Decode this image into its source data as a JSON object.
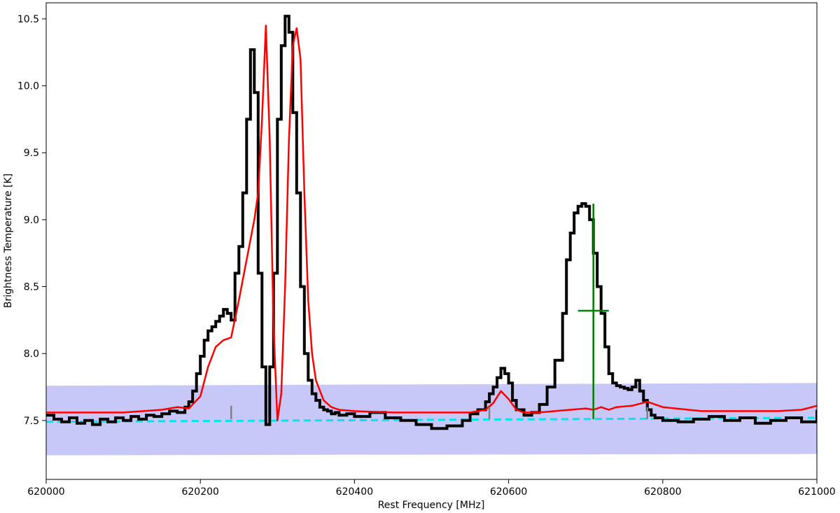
{
  "chart_data": {
    "type": "line",
    "title": "",
    "xlabel": "Rest Frequency [MHz]",
    "ylabel": "Brightness Temperature [K]",
    "xlim": [
      620000,
      621000
    ],
    "ylim": [
      7.06,
      10.62
    ],
    "grid": false,
    "x_ticks": [
      620000,
      620200,
      620400,
      620600,
      620800,
      621000
    ],
    "y_ticks": [
      7.5,
      8.0,
      8.5,
      9.0,
      9.5,
      10.0,
      10.5
    ],
    "x_tick_labels": [
      "620000",
      "620200",
      "620400",
      "620600",
      "620800",
      "621000"
    ],
    "y_tick_labels": [
      "7.5",
      "8.0",
      "8.5",
      "9.0",
      "9.5",
      "10.0",
      "10.5"
    ],
    "colors": {
      "observed": "#000000",
      "model": "#ff0000",
      "baseline": "#00e5ee",
      "band": "#c8c8f8",
      "marker": "#808080",
      "errorbar": "#008000"
    },
    "series": [
      {
        "role": "observed",
        "style": "step",
        "x": [
          620000,
          620010,
          620020,
          620030,
          620040,
          620050,
          620060,
          620070,
          620080,
          620090,
          620100,
          620110,
          620120,
          620130,
          620140,
          620150,
          620160,
          620170,
          620180,
          620185,
          620190,
          620195,
          620200,
          620205,
          620210,
          620215,
          620220,
          620225,
          620230,
          620235,
          620240,
          620245,
          620250,
          620255,
          620260,
          620265,
          620270,
          620275,
          620280,
          620285,
          620290,
          620295,
          620300,
          620305,
          620310,
          620315,
          620320,
          620325,
          620330,
          620335,
          620340,
          620345,
          620350,
          620355,
          620360,
          620365,
          620370,
          620375,
          620380,
          620390,
          620400,
          620420,
          620440,
          620460,
          620480,
          620500,
          620520,
          620540,
          620550,
          620560,
          620570,
          620575,
          620580,
          620585,
          620590,
          620595,
          620600,
          620605,
          620610,
          620620,
          620630,
          620640,
          620650,
          620660,
          620670,
          620675,
          620680,
          620685,
          620690,
          620695,
          620700,
          620705,
          620710,
          620715,
          620720,
          620725,
          620730,
          620735,
          620740,
          620745,
          620750,
          620755,
          620760,
          620765,
          620770,
          620775,
          620780,
          620785,
          620790,
          620800,
          620820,
          620840,
          620860,
          620880,
          620900,
          620920,
          620940,
          620960,
          620980,
          621000
        ],
        "y": [
          7.54,
          7.51,
          7.49,
          7.52,
          7.48,
          7.5,
          7.47,
          7.51,
          7.49,
          7.52,
          7.5,
          7.53,
          7.51,
          7.54,
          7.53,
          7.55,
          7.57,
          7.56,
          7.6,
          7.64,
          7.72,
          7.85,
          7.98,
          8.1,
          8.17,
          8.2,
          8.24,
          8.28,
          8.33,
          8.3,
          8.25,
          8.6,
          8.8,
          9.2,
          9.75,
          10.27,
          9.95,
          8.6,
          7.9,
          7.47,
          7.9,
          8.6,
          9.75,
          10.3,
          10.52,
          10.4,
          9.8,
          9.2,
          8.5,
          8.0,
          7.8,
          7.7,
          7.65,
          7.6,
          7.58,
          7.57,
          7.55,
          7.56,
          7.54,
          7.55,
          7.53,
          7.56,
          7.52,
          7.5,
          7.47,
          7.44,
          7.46,
          7.5,
          7.55,
          7.58,
          7.64,
          7.7,
          7.75,
          7.82,
          7.89,
          7.85,
          7.78,
          7.65,
          7.58,
          7.54,
          7.56,
          7.62,
          7.75,
          7.95,
          8.3,
          8.7,
          8.9,
          9.05,
          9.1,
          9.12,
          9.1,
          9.0,
          8.75,
          8.5,
          8.3,
          8.05,
          7.85,
          7.78,
          7.76,
          7.75,
          7.74,
          7.73,
          7.75,
          7.8,
          7.72,
          7.65,
          7.58,
          7.54,
          7.52,
          7.5,
          7.49,
          7.51,
          7.53,
          7.5,
          7.52,
          7.48,
          7.5,
          7.52,
          7.49,
          7.58
        ]
      },
      {
        "role": "model",
        "style": "line",
        "x": [
          620000,
          620050,
          620100,
          620150,
          620170,
          620185,
          620200,
          620210,
          620220,
          620230,
          620240,
          620250,
          620260,
          620270,
          620275,
          620280,
          620285,
          620290,
          620295,
          620300,
          620305,
          620310,
          620315,
          620320,
          620325,
          620330,
          620335,
          620340,
          620345,
          620350,
          620360,
          620370,
          620380,
          620400,
          620450,
          620500,
          620550,
          620570,
          620580,
          620590,
          620600,
          620610,
          620620,
          620640,
          620660,
          620680,
          620700,
          620710,
          620720,
          620730,
          620740,
          620760,
          620780,
          620800,
          620850,
          620900,
          620950,
          620980,
          621000
        ],
        "y": [
          7.56,
          7.56,
          7.56,
          7.58,
          7.6,
          7.59,
          7.68,
          7.9,
          8.05,
          8.1,
          8.12,
          8.4,
          8.7,
          9.0,
          9.2,
          9.75,
          10.45,
          9.6,
          8.2,
          7.5,
          7.7,
          8.5,
          9.6,
          10.3,
          10.43,
          10.2,
          9.2,
          8.4,
          8.0,
          7.8,
          7.65,
          7.6,
          7.58,
          7.57,
          7.56,
          7.56,
          7.56,
          7.58,
          7.63,
          7.72,
          7.66,
          7.58,
          7.56,
          7.56,
          7.57,
          7.58,
          7.59,
          7.58,
          7.6,
          7.58,
          7.6,
          7.61,
          7.64,
          7.6,
          7.57,
          7.57,
          7.57,
          7.58,
          7.61
        ]
      }
    ],
    "baseline": {
      "x": [
        620000,
        621000
      ],
      "y": [
        7.49,
        7.52
      ]
    },
    "band": {
      "x": [
        620000,
        621000
      ],
      "y_low": [
        7.24,
        7.25
      ],
      "y_high": [
        7.76,
        7.78
      ]
    },
    "markers": [
      {
        "x": 620240,
        "y_low": 7.51,
        "y_high": 7.61
      },
      {
        "x": 620575,
        "y_low": 7.51,
        "y_high": 7.6
      },
      {
        "x": 620780,
        "y_low": 7.51,
        "y_high": 7.6
      }
    ],
    "errorbar": {
      "x": 620710,
      "y_low": 7.51,
      "y_high": 9.12,
      "y_mid": 8.32,
      "x_low": 620690,
      "x_high": 620730
    }
  }
}
